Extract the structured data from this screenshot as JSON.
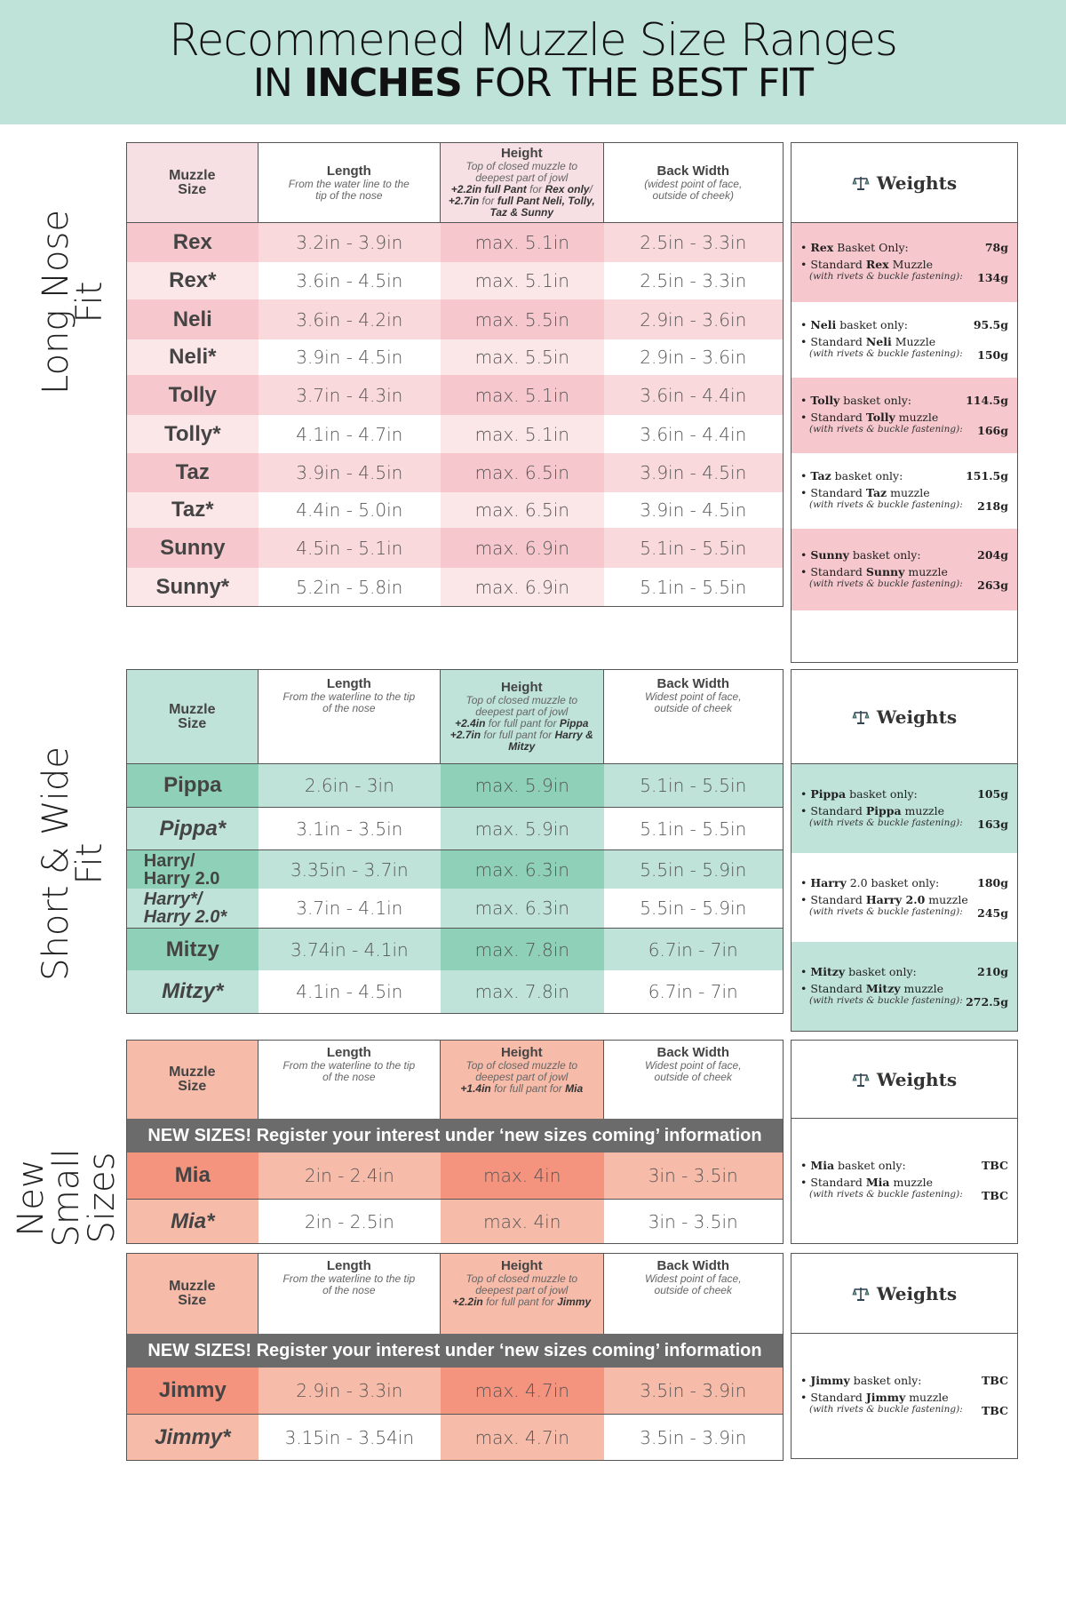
{
  "header": {
    "title": "Recommened Muzzle Size Ranges",
    "subtitle_pre": "IN ",
    "subtitle_bold": "INCHES",
    "subtitle_post": " FOR THE BEST FIT"
  },
  "colors": {
    "header_bg": "#bfe3d8",
    "long_header": "#f6e0e3",
    "long_dark": "#f6c8cd",
    "long_mid": "#f9d9dc",
    "long_light": "#fbe6e8",
    "short_dark": "#8fd0b8",
    "short_mid": "#bfe3d8",
    "new_dark": "#f4937e",
    "new_mid": "#f7bba9",
    "banner": "#6b6b6b"
  },
  "sections": {
    "long": {
      "label_line1": "Long Nose",
      "label_line2": "Fit",
      "header": {
        "size": "Muzzle Size",
        "length_title": "Length",
        "length_sub": "From the water line to the tip of the nose",
        "height_title": "Height",
        "height_sub1": "Top of closed muzzle to deepest part of jowl",
        "height_sub2_bold": "+2.2in full Pant",
        "height_sub2_rest": " for ",
        "height_sub2_bold2": "Rex only",
        "height_sub3_bold": "+2.7in",
        "height_sub3_rest": " for ",
        "height_sub3_bold2": "full Pant Neli, Tolly, Taz & Sunny",
        "width_title": "Back Width",
        "width_sub": "(widest point of face, outside of cheek)"
      },
      "rows": [
        {
          "name": "Rex",
          "length": "3.2in - 3.9in",
          "height": "max. 5.1in",
          "width": "2.5in - 3.3in"
        },
        {
          "name": "Rex*",
          "length": "3.6in - 4.5in",
          "height": "max. 5.1in",
          "width": "2.5in - 3.3in"
        },
        {
          "name": "Neli",
          "length": "3.6in - 4.2in",
          "height": "max. 5.5in",
          "width": "2.9in - 3.6in"
        },
        {
          "name": "Neli*",
          "length": "3.9in - 4.5in",
          "height": "max. 5.5in",
          "width": "2.9in - 3.6in"
        },
        {
          "name": "Tolly",
          "length": "3.7in - 4.3in",
          "height": "max. 5.1in",
          "width": "3.6in - 4.4in"
        },
        {
          "name": "Tolly*",
          "length": "4.1in - 4.7in",
          "height": "max. 5.1in",
          "width": "3.6in - 4.4in"
        },
        {
          "name": "Taz",
          "length": "3.9in - 4.5in",
          "height": "max. 6.5in",
          "width": "3.9in - 4.5in"
        },
        {
          "name": "Taz*",
          "length": "4.4in - 5.0in",
          "height": "max. 6.5in",
          "width": "3.9in - 4.5in"
        },
        {
          "name": "Sunny",
          "length": "4.5in - 5.1in",
          "height": "max. 6.9in",
          "width": "5.1in - 5.5in"
        },
        {
          "name": "Sunny*",
          "length": "5.2in - 5.8in",
          "height": "max. 6.9in",
          "width": "5.1in - 5.5in"
        }
      ],
      "weights_title": "Weights",
      "weights": [
        {
          "basket_label": "Rex Basket Only:",
          "basket_value": "78g",
          "std_pre": "Standard ",
          "std_name": "Rex",
          "std_post": " Muzzle",
          "std_value": "134g",
          "note": "(with rivets & buckle fastening):"
        },
        {
          "basket_label": "Neli basket only:",
          "basket_value": "95.5g",
          "std_pre": "Standard ",
          "std_name": "Neli",
          "std_post": " Muzzle",
          "std_value": "150g",
          "note": "(with rivets & buckle fastening):"
        },
        {
          "basket_label": "Tolly basket only:",
          "basket_value": "114.5g",
          "std_pre": "Standard ",
          "std_name": "Tolly",
          "std_post": " muzzle",
          "std_value": "166g",
          "note": "(with rivets & buckle fastening):"
        },
        {
          "basket_label": "Taz basket only:",
          "basket_value": "151.5g",
          "std_pre": "Standard ",
          "std_name": "Taz",
          "std_post": " muzzle",
          "std_value": "218g",
          "note": "(with rivets & buckle fastening):"
        },
        {
          "basket_label": "Sunny basket only:",
          "basket_value": "204g",
          "std_pre": "Standard ",
          "std_name": "Sunny",
          "std_post": " muzzle",
          "std_value": "263g",
          "note": "(with rivets & buckle fastening):"
        }
      ]
    },
    "short": {
      "label_line1": "Short & Wide",
      "label_line2": "Fit",
      "header": {
        "size": "Muzzle Size",
        "length_title": "Length",
        "length_sub": "From the waterline to the tip of the nose",
        "height_title": "Height",
        "height_sub1": "Top of closed muzzle to deepest part of jowl",
        "height_sub2_bold": "+2.4in",
        "height_sub2_rest": " for full pant for ",
        "height_sub2_bold2": "Pippa",
        "height_sub3_bold": "+2.7in",
        "height_sub3_rest": " for full pant for ",
        "height_sub3_bold2": "Harry & Mitzy",
        "width_title": "Back Width",
        "width_sub": "Widest point of face, outside of cheek"
      },
      "rows": [
        {
          "name": "Pippa",
          "length": "2.6in - 3in",
          "height": "max. 5.9in",
          "width": "5.1in - 5.5in"
        },
        {
          "name": "Pippa*",
          "length": "3.1in - 3.5in",
          "height": "max. 5.9in",
          "width": "5.1in - 5.5in"
        },
        {
          "name": "Harry/ Harry 2.0",
          "length": "3.35in - 3.7in",
          "height": "max. 6.3in",
          "width": "5.5in - 5.9in"
        },
        {
          "name": "Harry*/ Harry 2.0*",
          "length": "3.7in - 4.1in",
          "height": "max. 6.3in",
          "width": "5.5in - 5.9in"
        },
        {
          "name": "Mitzy",
          "length": "3.74in - 4.1in",
          "height": "max. 7.8in",
          "width": "6.7in - 7in"
        },
        {
          "name": "Mitzy*",
          "length": "4.1in - 4.5in",
          "height": "max. 7.8in",
          "width": "6.7in - 7in"
        }
      ],
      "weights_title": "Weights",
      "weights": [
        {
          "basket_label": "Pippa basket only:",
          "basket_value": "105g",
          "std_pre": "Standard ",
          "std_name": "Pippa",
          "std_post": " muzzle",
          "std_value": "163g",
          "note": "(with rivets & buckle fastening):"
        },
        {
          "basket_label": "Harry 2.0 basket only:",
          "basket_value": "180g",
          "std_pre": "Standard ",
          "std_name": "Harry 2.0",
          "std_post": " muzzle",
          "std_value": "245g",
          "note": "(with rivets & buckle fastening):"
        },
        {
          "basket_label": "Mitzy basket only:",
          "basket_value": "210g",
          "std_pre": "Standard ",
          "std_name": "Mitzy",
          "std_post": " muzzle",
          "std_value": "272.5g",
          "note": "(with rivets & buckle fastening):"
        }
      ]
    },
    "small": {
      "label_line1": "New",
      "label_line2": "Small",
      "label_line3": "Sizes",
      "banner": "NEW SIZES! Register your interest under ‘new sizes coming’ information",
      "mia": {
        "header": {
          "size": "Muzzle Size",
          "length_title": "Length",
          "length_sub": "From the waterline to the tip of the nose",
          "height_title": "Height",
          "height_sub1": "Top of closed muzzle to deepest part of jowl",
          "height_sub2_bold": "+1.4in",
          "height_sub2_rest": " for full pant for ",
          "height_sub2_bold2": "Mia",
          "width_title": "Back Width",
          "width_sub": "Widest point of face, outside of cheek"
        },
        "rows": [
          {
            "name": "Mia",
            "length": "2in - 2.4in",
            "height": "max. 4in",
            "width": "3in - 3.5in"
          },
          {
            "name": "Mia*",
            "length": "2in - 2.5in",
            "height": "max. 4in",
            "width": "3in - 3.5in"
          }
        ],
        "weights_title": "Weights",
        "weights": {
          "basket_label": "Mia basket only:",
          "basket_value": "TBC",
          "std_pre": "Standard ",
          "std_name": "Mia",
          "std_post": " muzzle",
          "std_value": "TBC",
          "note": "(with rivets & buckle fastening):"
        }
      },
      "jimmy": {
        "header": {
          "size": "Muzzle Size",
          "length_title": "Length",
          "length_sub": "From the waterline to the tip of the nose",
          "height_title": "Height",
          "height_sub1": "Top of closed muzzle to deepest part of jowl",
          "height_sub2_bold": "+2.2in",
          "height_sub2_rest": " for full pant for ",
          "height_sub2_bold2": "Jimmy",
          "width_title": "Back Width",
          "width_sub": "Widest point of face, outside of cheek"
        },
        "rows": [
          {
            "name": "Jimmy",
            "length": "2.9in - 3.3in",
            "height": "max. 4.7in",
            "width": "3.5in - 3.9in"
          },
          {
            "name": "Jimmy*",
            "length": "3.15in - 3.54in",
            "height": "max. 4.7in",
            "width": "3.5in - 3.9in"
          }
        ],
        "weights_title": "Weights",
        "weights": {
          "basket_label": "Jimmy basket only:",
          "basket_value": "TBC",
          "std_pre": "Standard ",
          "std_name": "Jimmy",
          "std_post": " muzzle",
          "std_value": "TBC",
          "note": "(with rivets & buckle fastening):"
        }
      }
    }
  }
}
